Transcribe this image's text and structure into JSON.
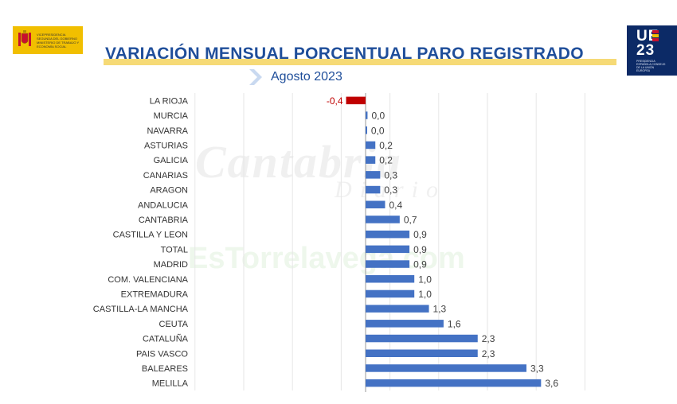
{
  "header": {
    "left_logo_text": "VICEPRESIDENCIA SEGUNDA DEL GOBIERNO MINISTERIO DE TRABAJO Y ECONOMÍA SOCIAL",
    "right_logo_ue": "UE",
    "right_logo_year": "23",
    "right_logo_small": "PRESIDENCIA ESPAÑOLA CONSEJO DE LA UNIÓN EUROPEA"
  },
  "watermarks": {
    "line1": "Cantabria",
    "line2": "Diario",
    "line3": "EsTorrelavega.com"
  },
  "colors": {
    "positive": "#4472c4",
    "negative": "#c00000",
    "title": "#1f4e9a"
  },
  "chart_data": {
    "type": "bar",
    "orientation": "horizontal",
    "title": "VARIACIÓN MENSUAL PORCENTUAL PARO REGISTRADO",
    "subtitle": "Agosto 2023",
    "categories": [
      "LA RIOJA",
      "MURCIA",
      "NAVARRA",
      "ASTURIAS",
      "GALICIA",
      "CANARIAS",
      "ARAGON",
      "ANDALUCIA",
      "CANTABRIA",
      "CASTILLA Y LEON",
      "TOTAL",
      "MADRID",
      "COM. VALENCIANA",
      "EXTREMADURA",
      "CASTILLA-LA MANCHA",
      "CEUTA",
      "CATALUÑA",
      "PAIS VASCO",
      "BALEARES",
      "MELILLA"
    ],
    "values": [
      -0.4,
      0.04,
      0.03,
      0.2,
      0.2,
      0.3,
      0.3,
      0.4,
      0.7,
      0.9,
      0.9,
      0.9,
      1.0,
      1.0,
      1.3,
      1.6,
      2.3,
      2.3,
      3.3,
      3.6
    ],
    "labels": [
      "-0,4",
      "0,0",
      "0,0",
      "0,2",
      "0,2",
      "0,3",
      "0,3",
      "0,4",
      "0,7",
      "0,9",
      "0,9",
      "0,9",
      "1,0",
      "1,0",
      "1,3",
      "1,6",
      "2,3",
      "2,3",
      "3,3",
      "3,6"
    ],
    "xlim": [
      -3.5,
      4.5
    ],
    "grid": true,
    "legend": "none"
  }
}
